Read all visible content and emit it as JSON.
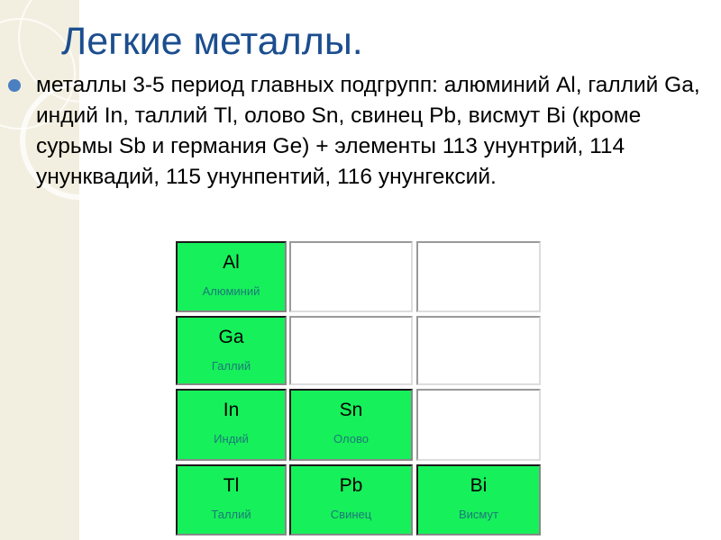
{
  "title": "Легкие металлы.",
  "body_text": "металлы 3-5 период главных подгрупп: алюминий Al, галлий Ga, индий In, таллий Tl, олово Sn, свинец Pb, висмут Bi (кроме сурьмы Sb и германия Ge) + элементы 113 унунтрий, 114 унунквадий, 115 унунпентий, 116 унунгексий.",
  "colors": {
    "title": "#1b4e8f",
    "highlight": "#16f05a",
    "bullet": "#4a7fc1"
  },
  "table": [
    [
      {
        "symbol": "Al",
        "name": "Алюминий"
      },
      null,
      null
    ],
    [
      {
        "symbol": "Ga",
        "name": "Галлий"
      },
      null,
      null
    ],
    [
      {
        "symbol": "In",
        "name": "Индий"
      },
      {
        "symbol": "Sn",
        "name": "Олово"
      },
      null
    ],
    [
      {
        "symbol": "Tl",
        "name": "Таллий"
      },
      {
        "symbol": "Pb",
        "name": "Свинец"
      },
      {
        "symbol": "Bi",
        "name": "Висмут"
      }
    ]
  ]
}
